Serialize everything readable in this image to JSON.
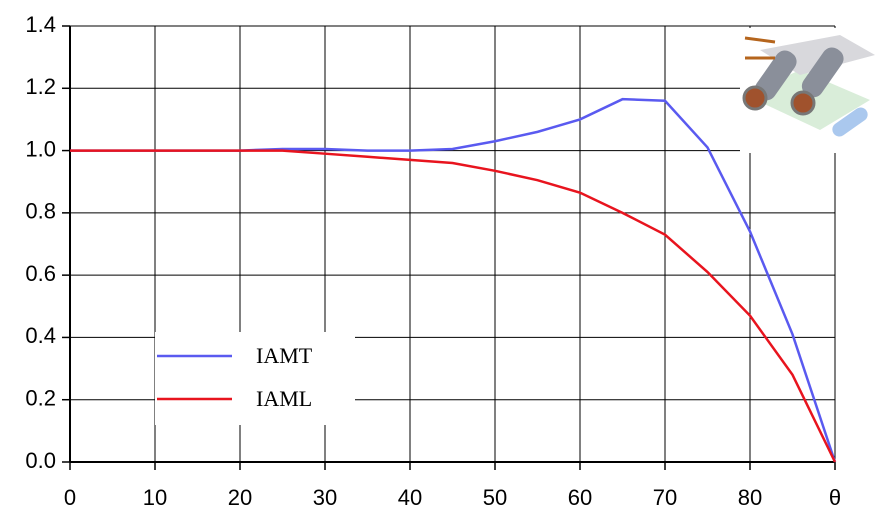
{
  "chart_data": {
    "type": "line",
    "x": [
      0,
      5,
      10,
      15,
      20,
      25,
      30,
      35,
      40,
      45,
      50,
      55,
      60,
      65,
      70,
      75,
      80,
      85,
      90
    ],
    "series": [
      {
        "name": "IAMT",
        "color": "#5a5af0",
        "values": [
          1.0,
          1.0,
          1.0,
          1.0,
          1.0,
          1.005,
          1.005,
          1.0,
          1.0,
          1.005,
          1.03,
          1.06,
          1.1,
          1.165,
          1.16,
          1.01,
          0.74,
          0.41,
          0.0
        ]
      },
      {
        "name": "IAML",
        "color": "#e8141e",
        "values": [
          1.0,
          1.0,
          1.0,
          1.0,
          1.0,
          1.0,
          0.99,
          0.98,
          0.97,
          0.96,
          0.935,
          0.905,
          0.865,
          0.8,
          0.73,
          0.61,
          0.47,
          0.28,
          0.0
        ]
      }
    ],
    "xlim": [
      0,
      90
    ],
    "xticks": [
      0,
      10,
      20,
      30,
      40,
      50,
      60,
      70,
      80,
      {
        "value": 90,
        "label": "θ"
      }
    ],
    "ylim": [
      0,
      1.4
    ],
    "yticks": [
      {
        "value": 0,
        "label": "0.0"
      },
      0.2,
      0.4,
      0.6,
      0.8,
      {
        "value": 1,
        "label": "1.0"
      },
      1.2,
      1.4
    ],
    "grid": true
  }
}
